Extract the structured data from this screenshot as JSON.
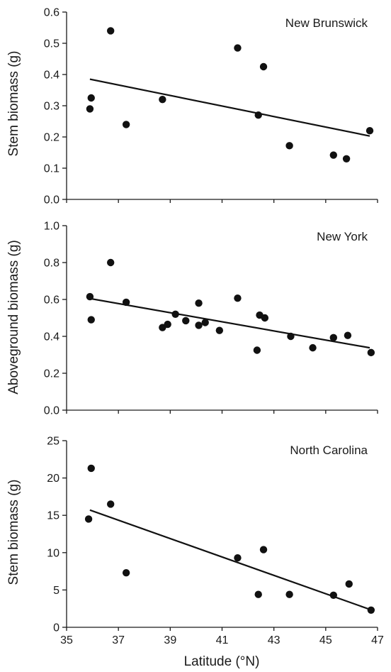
{
  "chart_data": [
    {
      "type": "scatter",
      "panel_label": "New Brunswick",
      "ylabel": "Stem biomass (g)",
      "xlabel": "",
      "xlim": [
        35,
        47
      ],
      "ylim": [
        0.0,
        0.6
      ],
      "xticks": [
        35,
        37,
        39,
        41,
        43,
        45,
        47
      ],
      "yticks": [
        "0.0",
        "0.1",
        "0.2",
        "0.3",
        "0.4",
        "0.5",
        "0.6"
      ],
      "series": [
        {
          "points": [
            {
              "x": 35.9,
              "y": 0.29
            },
            {
              "x": 35.95,
              "y": 0.325
            },
            {
              "x": 36.7,
              "y": 0.54
            },
            {
              "x": 37.3,
              "y": 0.24
            },
            {
              "x": 38.7,
              "y": 0.32
            },
            {
              "x": 41.6,
              "y": 0.485
            },
            {
              "x": 42.4,
              "y": 0.27
            },
            {
              "x": 42.6,
              "y": 0.425
            },
            {
              "x": 43.6,
              "y": 0.172
            },
            {
              "x": 45.3,
              "y": 0.142
            },
            {
              "x": 45.8,
              "y": 0.13
            },
            {
              "x": 46.7,
              "y": 0.22
            }
          ],
          "trend": [
            {
              "x": 35.9,
              "y": 0.385
            },
            {
              "x": 46.7,
              "y": 0.203
            }
          ]
        }
      ]
    },
    {
      "type": "scatter",
      "panel_label": "New York",
      "ylabel": "Aboveground biomass (g)",
      "xlabel": "",
      "xlim": [
        35,
        47
      ],
      "ylim": [
        0.0,
        1.0
      ],
      "xticks": [
        35,
        37,
        39,
        41,
        43,
        45,
        47
      ],
      "yticks": [
        "0.0",
        "0.2",
        "0.4",
        "0.6",
        "0.8",
        "1.0"
      ],
      "series": [
        {
          "points": [
            {
              "x": 35.9,
              "y": 0.615
            },
            {
              "x": 35.95,
              "y": 0.49
            },
            {
              "x": 36.7,
              "y": 0.8
            },
            {
              "x": 37.3,
              "y": 0.585
            },
            {
              "x": 38.7,
              "y": 0.448
            },
            {
              "x": 38.9,
              "y": 0.465
            },
            {
              "x": 39.2,
              "y": 0.52
            },
            {
              "x": 39.6,
              "y": 0.485
            },
            {
              "x": 40.1,
              "y": 0.58
            },
            {
              "x": 40.1,
              "y": 0.46
            },
            {
              "x": 40.35,
              "y": 0.475
            },
            {
              "x": 40.9,
              "y": 0.432
            },
            {
              "x": 41.6,
              "y": 0.607
            },
            {
              "x": 42.35,
              "y": 0.325
            },
            {
              "x": 42.45,
              "y": 0.515
            },
            {
              "x": 42.65,
              "y": 0.5
            },
            {
              "x": 43.65,
              "y": 0.4
            },
            {
              "x": 44.5,
              "y": 0.338
            },
            {
              "x": 45.3,
              "y": 0.393
            },
            {
              "x": 45.85,
              "y": 0.405
            },
            {
              "x": 46.75,
              "y": 0.312
            }
          ],
          "trend": [
            {
              "x": 35.9,
              "y": 0.605
            },
            {
              "x": 46.7,
              "y": 0.338
            }
          ]
        }
      ]
    },
    {
      "type": "scatter",
      "panel_label": "North Carolina",
      "ylabel": "Stem biomass (g)",
      "xlabel": "Latitude (°N)",
      "xlim": [
        35,
        47
      ],
      "ylim": [
        0,
        25
      ],
      "xticks": [
        35,
        37,
        39,
        41,
        43,
        45,
        47
      ],
      "yticks": [
        "0",
        "5",
        "10",
        "15",
        "20",
        "25"
      ],
      "series": [
        {
          "points": [
            {
              "x": 35.85,
              "y": 14.5
            },
            {
              "x": 35.95,
              "y": 21.3
            },
            {
              "x": 36.7,
              "y": 16.5
            },
            {
              "x": 37.3,
              "y": 7.3
            },
            {
              "x": 41.6,
              "y": 9.3
            },
            {
              "x": 42.4,
              "y": 4.4
            },
            {
              "x": 42.6,
              "y": 10.4
            },
            {
              "x": 43.6,
              "y": 4.4
            },
            {
              "x": 45.3,
              "y": 4.3
            },
            {
              "x": 45.9,
              "y": 5.8
            },
            {
              "x": 46.75,
              "y": 2.3
            }
          ],
          "trend": [
            {
              "x": 35.9,
              "y": 15.7
            },
            {
              "x": 46.7,
              "y": 2.4
            }
          ]
        }
      ]
    }
  ]
}
